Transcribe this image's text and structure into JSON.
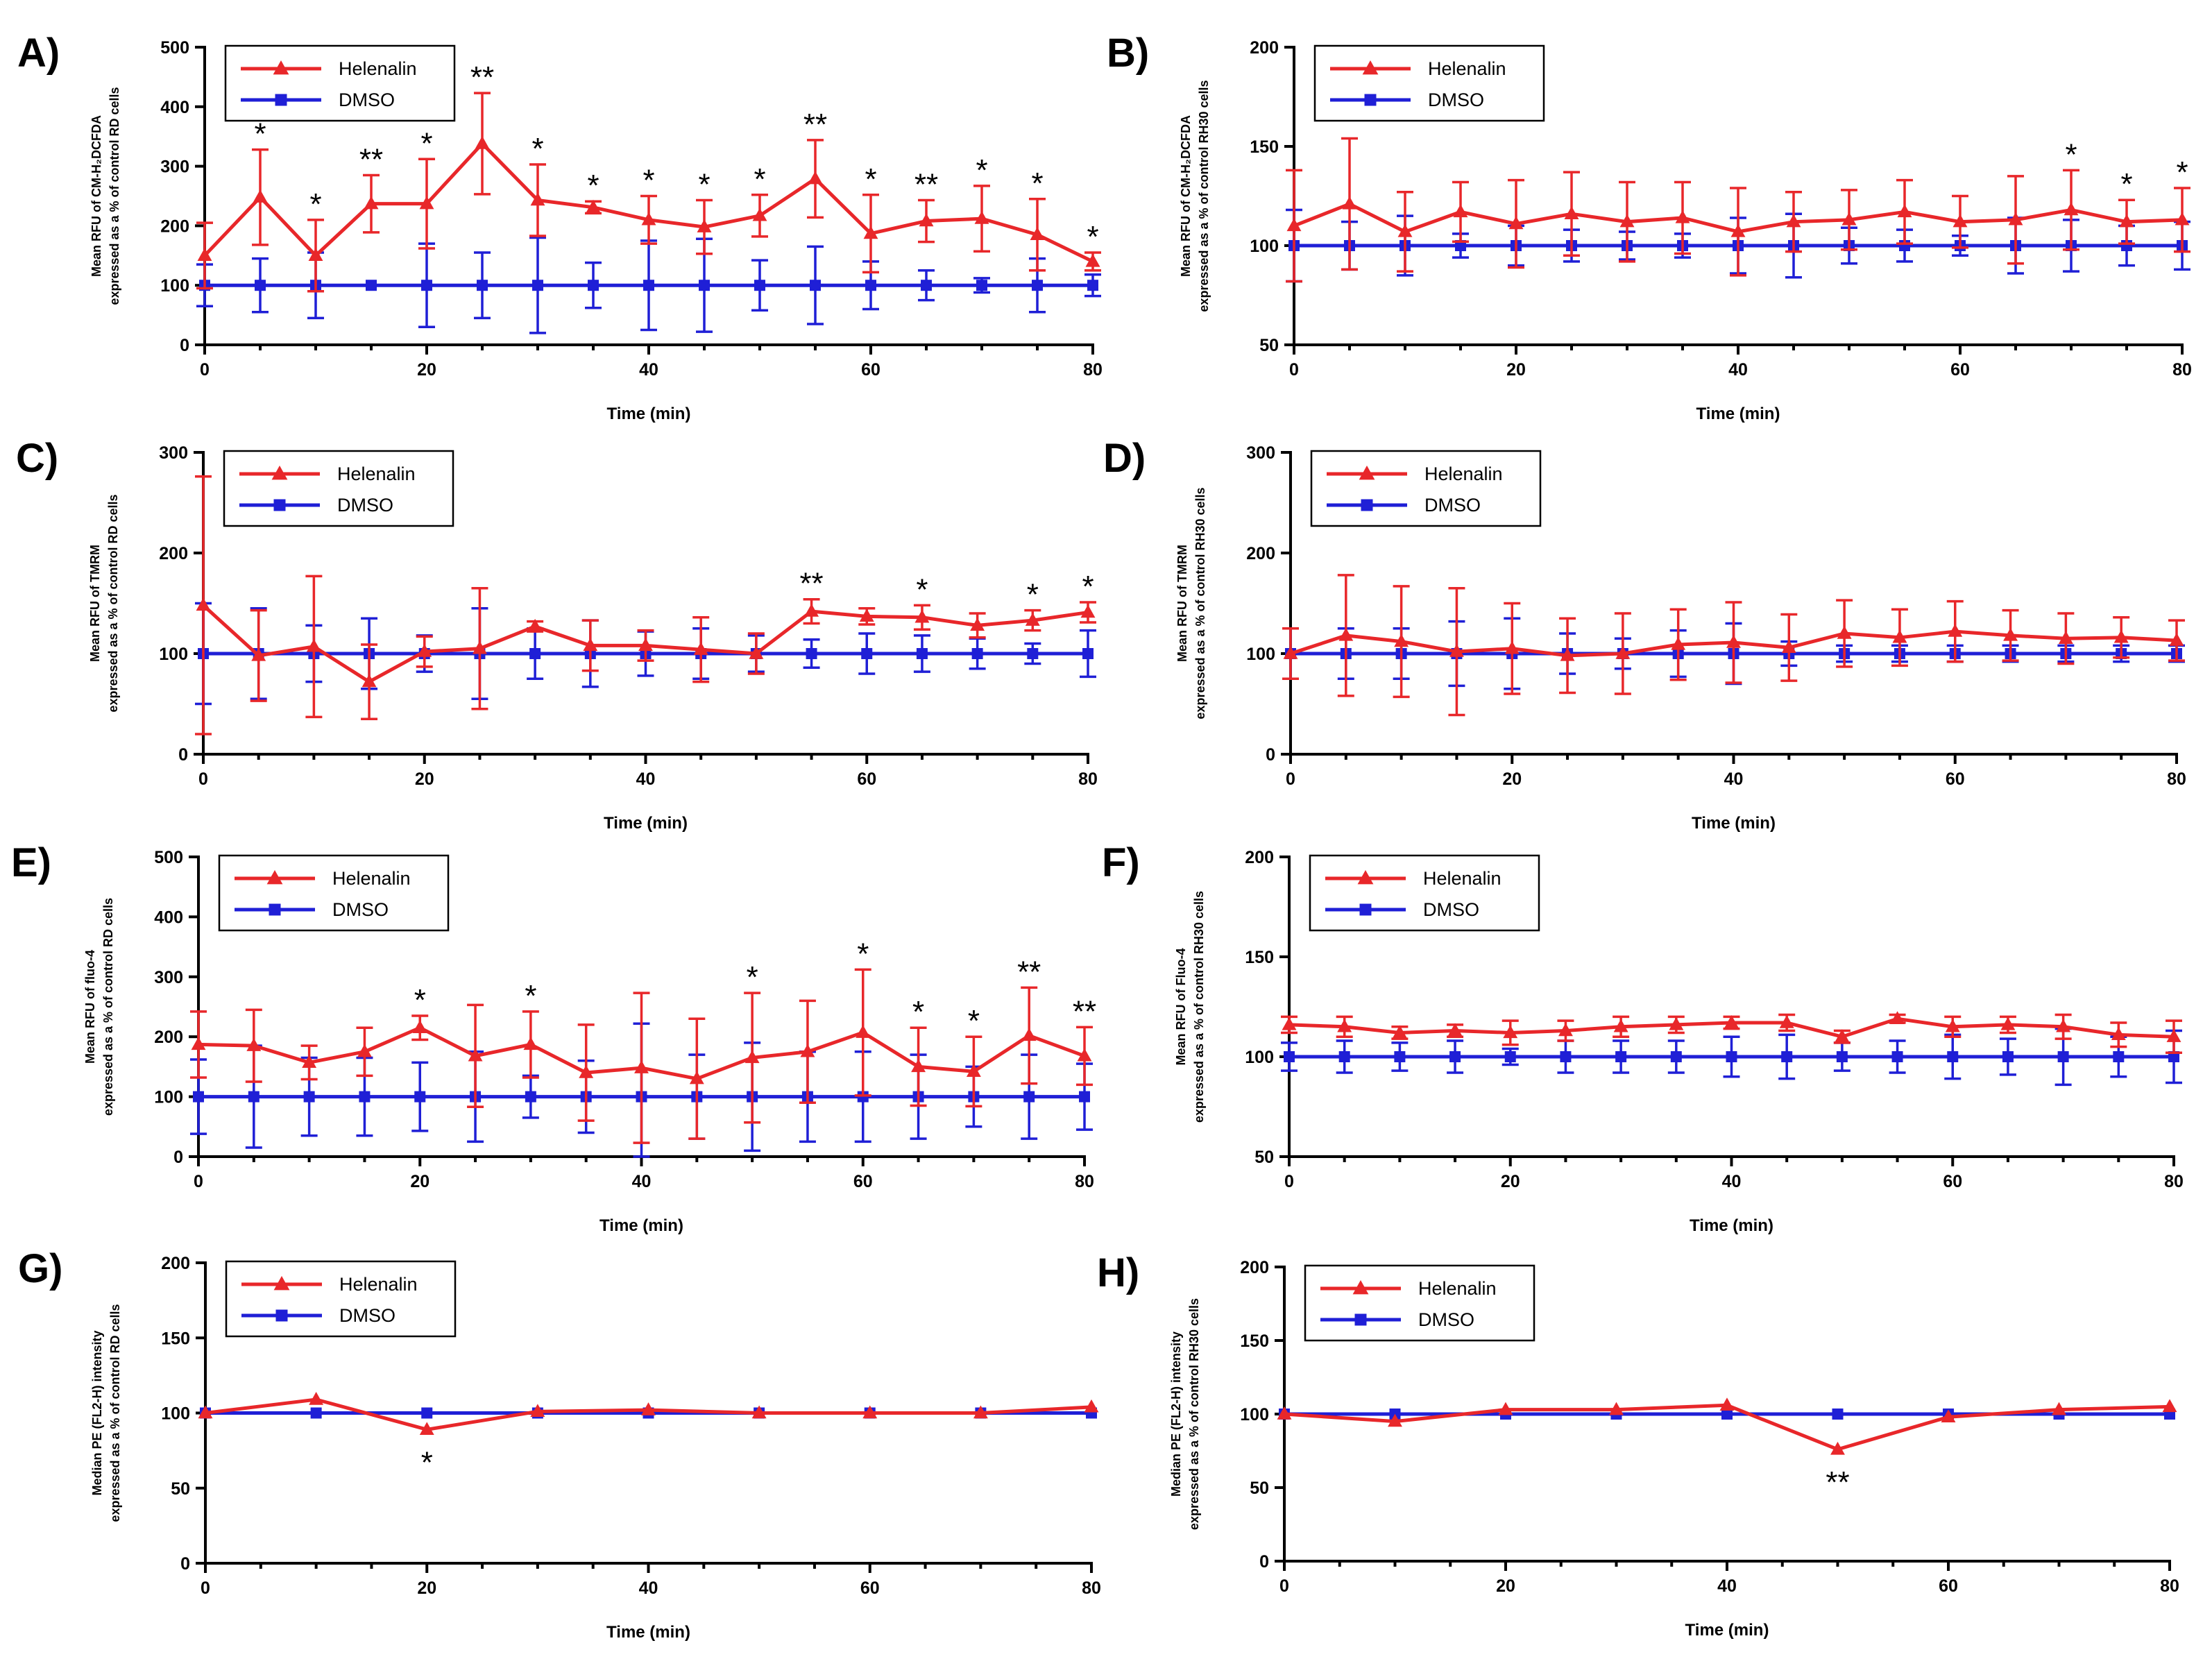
{
  "colors": {
    "helenalin": "#e8272a",
    "dmso": "#1f1fd6"
  },
  "legend": {
    "helenalin": "Helenalin",
    "dmso": "DMSO"
  },
  "chart_data": [
    {
      "id": "A",
      "letter": "A)",
      "type": "line",
      "title": "",
      "ylabel": [
        "Mean RFU of CM-H₂DCFDA",
        "expressed as a % of control RD cells"
      ],
      "xlabel": "Time (min)",
      "ylim": [
        0,
        500
      ],
      "yticks": [
        0,
        100,
        200,
        300,
        400,
        500
      ],
      "xlim": [
        0,
        80
      ],
      "xticks": [
        0,
        20,
        40,
        60,
        80
      ],
      "x": [
        0,
        5,
        10,
        15,
        20,
        25,
        30,
        35,
        40,
        45,
        50,
        55,
        60,
        65,
        70,
        75,
        80
      ],
      "series": [
        {
          "name": "Helenalin",
          "values": [
            150,
            248,
            150,
            237,
            237,
            338,
            243,
            231,
            210,
            198,
            217,
            279,
            187,
            208,
            212,
            185,
            140
          ],
          "err": [
            55,
            80,
            60,
            48,
            75,
            85,
            60,
            10,
            40,
            45,
            35,
            65,
            65,
            35,
            55,
            60,
            15
          ]
        },
        {
          "name": "DMSO",
          "values": [
            100,
            100,
            100,
            100,
            100,
            100,
            100,
            100,
            100,
            100,
            100,
            100,
            100,
            100,
            100,
            100,
            100
          ],
          "err": [
            35,
            45,
            55,
            0,
            70,
            55,
            80,
            38,
            75,
            78,
            42,
            65,
            40,
            25,
            12,
            45,
            18
          ]
        }
      ],
      "significance": [
        {
          "x": 5,
          "text": "*"
        },
        {
          "x": 10,
          "text": "*"
        },
        {
          "x": 15,
          "text": "**"
        },
        {
          "x": 20,
          "text": "*"
        },
        {
          "x": 25,
          "text": "**"
        },
        {
          "x": 30,
          "text": "*"
        },
        {
          "x": 35,
          "text": "*"
        },
        {
          "x": 40,
          "text": "*"
        },
        {
          "x": 45,
          "text": "*"
        },
        {
          "x": 50,
          "text": "*"
        },
        {
          "x": 55,
          "text": "**"
        },
        {
          "x": 60,
          "text": "*"
        },
        {
          "x": 65,
          "text": "**"
        },
        {
          "x": 70,
          "text": "*"
        },
        {
          "x": 75,
          "text": "*"
        },
        {
          "x": 80,
          "text": "*"
        }
      ]
    },
    {
      "id": "B",
      "letter": "B)",
      "type": "line",
      "title": "",
      "ylabel": [
        "Mean RFU of CM-H₂DCFDA",
        "expressed as a % of control RH30 cells"
      ],
      "xlabel": "Time (min)",
      "ylim": [
        50,
        200
      ],
      "yticks": [
        50,
        100,
        150,
        200
      ],
      "xlim": [
        0,
        80
      ],
      "xticks": [
        0,
        20,
        40,
        60,
        80
      ],
      "x": [
        0,
        5,
        10,
        15,
        20,
        25,
        30,
        35,
        40,
        45,
        50,
        55,
        60,
        65,
        70,
        75,
        80
      ],
      "series": [
        {
          "name": "Helenalin",
          "values": [
            110,
            121,
            107,
            117,
            111,
            116,
            112,
            114,
            107,
            112,
            113,
            117,
            112,
            113,
            118,
            112,
            113
          ],
          "err": [
            28,
            33,
            20,
            15,
            22,
            21,
            20,
            18,
            22,
            15,
            15,
            16,
            13,
            22,
            20,
            11,
            16
          ]
        },
        {
          "name": "DMSO",
          "values": [
            100,
            100,
            100,
            100,
            100,
            100,
            100,
            100,
            100,
            100,
            100,
            100,
            100,
            100,
            100,
            100,
            100
          ],
          "err": [
            18,
            12,
            15,
            6,
            10,
            8,
            7,
            6,
            14,
            16,
            9,
            8,
            5,
            14,
            13,
            10,
            12
          ]
        }
      ],
      "significance": [
        {
          "x": 70,
          "text": "*"
        },
        {
          "x": 75,
          "text": "*"
        },
        {
          "x": 80,
          "text": "*"
        }
      ]
    },
    {
      "id": "C",
      "letter": "C)",
      "type": "line",
      "title": "",
      "ylabel": [
        "Mean RFU of TMRM",
        "expressed as a % of control RD cells"
      ],
      "xlabel": "Time (min)",
      "ylim": [
        0,
        300
      ],
      "yticks": [
        0,
        100,
        200,
        300
      ],
      "xlim": [
        0,
        80
      ],
      "xticks": [
        0,
        20,
        40,
        60,
        80
      ],
      "x": [
        0,
        5,
        10,
        15,
        20,
        25,
        30,
        35,
        40,
        45,
        50,
        55,
        60,
        65,
        70,
        75,
        80
      ],
      "series": [
        {
          "name": "Helenalin",
          "values": [
            148,
            98,
            107,
            72,
            102,
            105,
            127,
            108,
            108,
            104,
            100,
            142,
            137,
            136,
            128,
            133,
            141
          ],
          "err": [
            128,
            45,
            70,
            37,
            15,
            60,
            5,
            25,
            15,
            32,
            20,
            12,
            8,
            12,
            12,
            10,
            10
          ]
        },
        {
          "name": "DMSO",
          "values": [
            100,
            100,
            100,
            100,
            100,
            100,
            100,
            100,
            100,
            100,
            100,
            100,
            100,
            100,
            100,
            100,
            100
          ],
          "err": [
            50,
            45,
            28,
            35,
            18,
            45,
            25,
            33,
            22,
            25,
            18,
            14,
            20,
            18,
            15,
            10,
            23
          ]
        }
      ],
      "significance": [
        {
          "x": 55,
          "text": "**"
        },
        {
          "x": 65,
          "text": "*"
        },
        {
          "x": 75,
          "text": "*"
        },
        {
          "x": 80,
          "text": "*"
        }
      ]
    },
    {
      "id": "D",
      "letter": "D)",
      "type": "line",
      "title": "",
      "ylabel": [
        "Mean RFU of TMRM",
        "expressed as a % of control RH30 cells"
      ],
      "xlabel": "Time (min)",
      "ylim": [
        0,
        300
      ],
      "yticks": [
        0,
        100,
        200,
        300
      ],
      "xlim": [
        0,
        80
      ],
      "xticks": [
        0,
        20,
        40,
        60,
        80
      ],
      "x": [
        0,
        5,
        10,
        15,
        20,
        25,
        30,
        35,
        40,
        45,
        50,
        55,
        60,
        65,
        70,
        75,
        80
      ],
      "series": [
        {
          "name": "Helenalin",
          "values": [
            100,
            118,
            112,
            102,
            105,
            98,
            100,
            109,
            111,
            106,
            120,
            116,
            122,
            118,
            115,
            116,
            113
          ],
          "err": [
            25,
            60,
            55,
            63,
            45,
            37,
            40,
            35,
            40,
            33,
            33,
            28,
            30,
            25,
            25,
            20,
            20
          ]
        },
        {
          "name": "DMSO",
          "values": [
            100,
            100,
            100,
            100,
            100,
            100,
            100,
            100,
            100,
            100,
            100,
            100,
            100,
            100,
            100,
            100,
            100
          ],
          "err": [
            25,
            25,
            25,
            32,
            35,
            20,
            15,
            23,
            30,
            12,
            8,
            8,
            8,
            8,
            8,
            8,
            8
          ]
        }
      ],
      "significance": []
    },
    {
      "id": "E",
      "letter": "E)",
      "type": "line",
      "title": "",
      "ylabel": [
        "Mean RFU of fluo-4",
        "expressed as a % of control RD cells"
      ],
      "xlabel": "Time (min)",
      "ylim": [
        0,
        500
      ],
      "yticks": [
        0,
        100,
        200,
        300,
        400,
        500
      ],
      "xlim": [
        0,
        80
      ],
      "xticks": [
        0,
        20,
        40,
        60,
        80
      ],
      "x": [
        0,
        5,
        10,
        15,
        20,
        25,
        30,
        35,
        40,
        45,
        50,
        55,
        60,
        65,
        70,
        75,
        80
      ],
      "series": [
        {
          "name": "Helenalin",
          "values": [
            187,
            185,
            157,
            175,
            215,
            168,
            187,
            140,
            148,
            130,
            165,
            175,
            207,
            150,
            142,
            202,
            168
          ],
          "err": [
            55,
            60,
            28,
            40,
            20,
            85,
            55,
            80,
            125,
            100,
            108,
            85,
            105,
            65,
            58,
            80,
            48
          ]
        },
        {
          "name": "DMSO",
          "values": [
            100,
            100,
            100,
            100,
            100,
            100,
            100,
            100,
            100,
            100,
            100,
            100,
            100,
            100,
            100,
            100,
            100
          ],
          "err": [
            62,
            85,
            65,
            65,
            57,
            75,
            35,
            60,
            122,
            70,
            90,
            75,
            75,
            70,
            50,
            70,
            55
          ]
        }
      ],
      "significance": [
        {
          "x": 20,
          "text": "*"
        },
        {
          "x": 30,
          "text": "*"
        },
        {
          "x": 50,
          "text": "*"
        },
        {
          "x": 60,
          "text": "*"
        },
        {
          "x": 65,
          "text": "*"
        },
        {
          "x": 70,
          "text": "*"
        },
        {
          "x": 75,
          "text": "**"
        },
        {
          "x": 80,
          "text": "**"
        }
      ]
    },
    {
      "id": "F",
      "letter": "F)",
      "type": "line",
      "title": "",
      "ylabel": [
        "Mean RFU of Fluo-4",
        "expressed as a % of control RH30 cells"
      ],
      "xlabel": "Time (min)",
      "ylim": [
        50,
        200
      ],
      "yticks": [
        50,
        100,
        150,
        200
      ],
      "xlim": [
        0,
        80
      ],
      "xticks": [
        0,
        20,
        40,
        60,
        80
      ],
      "x": [
        0,
        5,
        10,
        15,
        20,
        25,
        30,
        35,
        40,
        45,
        50,
        55,
        60,
        65,
        70,
        75,
        80
      ],
      "series": [
        {
          "name": "Helenalin",
          "values": [
            116,
            115,
            112,
            113,
            112,
            113,
            115,
            116,
            117,
            117,
            110,
            119,
            115,
            116,
            115,
            111,
            110
          ],
          "err": [
            4,
            5,
            3,
            3,
            6,
            5,
            5,
            4,
            3,
            4,
            3,
            2,
            5,
            4,
            6,
            6,
            8
          ]
        },
        {
          "name": "DMSO",
          "values": [
            100,
            100,
            100,
            100,
            100,
            100,
            100,
            100,
            100,
            100,
            100,
            100,
            100,
            100,
            100,
            100,
            100
          ],
          "err": [
            7,
            8,
            7,
            8,
            4,
            8,
            8,
            8,
            10,
            11,
            7,
            8,
            11,
            9,
            14,
            10,
            13
          ]
        }
      ],
      "significance": []
    },
    {
      "id": "G",
      "letter": "G)",
      "type": "line",
      "title": "",
      "ylabel": [
        "Median PE (FL2-H) intensity",
        "expressed as a % of control RD cells"
      ],
      "xlabel": "Time (min)",
      "ylim": [
        0,
        200
      ],
      "yticks": [
        0,
        50,
        100,
        150,
        200
      ],
      "xlim": [
        0,
        80
      ],
      "xticks": [
        0,
        20,
        40,
        60,
        80
      ],
      "x": [
        0,
        10,
        20,
        30,
        40,
        50,
        60,
        70,
        80
      ],
      "series": [
        {
          "name": "Helenalin",
          "values": [
            100,
            109,
            89,
            101,
            102,
            100,
            100,
            100,
            104
          ],
          "err": [
            0,
            0,
            0,
            0,
            0,
            0,
            0,
            0,
            0
          ]
        },
        {
          "name": "DMSO",
          "values": [
            100,
            100,
            100,
            100,
            100,
            100,
            100,
            100,
            100
          ],
          "err": [
            0,
            0,
            0,
            0,
            0,
            0,
            0,
            0,
            0
          ]
        }
      ],
      "significance": [
        {
          "x": 20,
          "text": "*",
          "below": true
        }
      ]
    },
    {
      "id": "H",
      "letter": "H)",
      "type": "line",
      "title": "",
      "ylabel": [
        "Median PE (FL2-H) intensity",
        "expressed as a % of control RH30 cells"
      ],
      "xlabel": "Time (min)",
      "ylim": [
        0,
        200
      ],
      "yticks": [
        0,
        50,
        100,
        150,
        200
      ],
      "xlim": [
        0,
        80
      ],
      "xticks": [
        0,
        20,
        40,
        60,
        80
      ],
      "x": [
        0,
        10,
        20,
        30,
        40,
        50,
        60,
        70,
        80
      ],
      "series": [
        {
          "name": "Helenalin",
          "values": [
            100,
            95,
            103,
            103,
            106,
            76,
            98,
            103,
            105
          ],
          "err": [
            0,
            0,
            0,
            0,
            0,
            0,
            0,
            0,
            0
          ]
        },
        {
          "name": "DMSO",
          "values": [
            100,
            100,
            100,
            100,
            100,
            100,
            100,
            100,
            100
          ],
          "err": [
            0,
            0,
            0,
            0,
            0,
            0,
            0,
            0,
            0
          ]
        }
      ],
      "significance": [
        {
          "x": 50,
          "text": "**",
          "below": true
        }
      ]
    }
  ]
}
